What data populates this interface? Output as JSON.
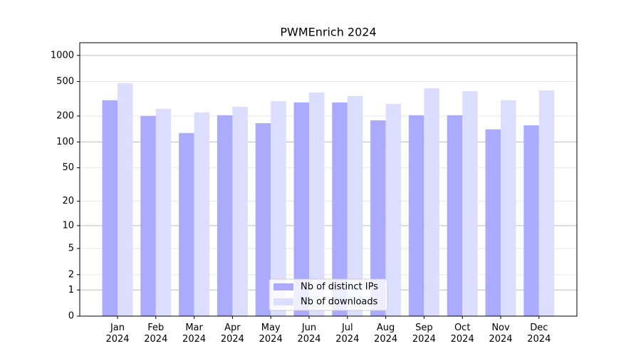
{
  "chart_data": {
    "type": "bar",
    "title": "PWMEnrich 2024",
    "yscale": "log1p",
    "categories": [
      "Jan\n2024",
      "Feb\n2024",
      "Mar\n2024",
      "Apr\n2024",
      "May\n2024",
      "Jun\n2024",
      "Jul\n2024",
      "Aug\n2024",
      "Sep\n2024",
      "Oct\n2024",
      "Nov\n2024",
      "Dec\n2024"
    ],
    "series": [
      {
        "name": "Nb of distinct IPs",
        "color": "#aaaaff",
        "values": [
          304,
          200,
          127,
          204,
          165,
          287,
          287,
          178,
          204,
          204,
          140,
          156
        ]
      },
      {
        "name": "Nb of downloads",
        "color": "#ddddff",
        "values": [
          478,
          242,
          220,
          256,
          298,
          374,
          340,
          276,
          419,
          388,
          304,
          396
        ]
      }
    ],
    "ylim": [
      0,
      1400
    ],
    "yticks": [
      0,
      1,
      2,
      5,
      10,
      20,
      50,
      100,
      200,
      500,
      1000
    ],
    "grid": true,
    "legend": "bottom"
  }
}
